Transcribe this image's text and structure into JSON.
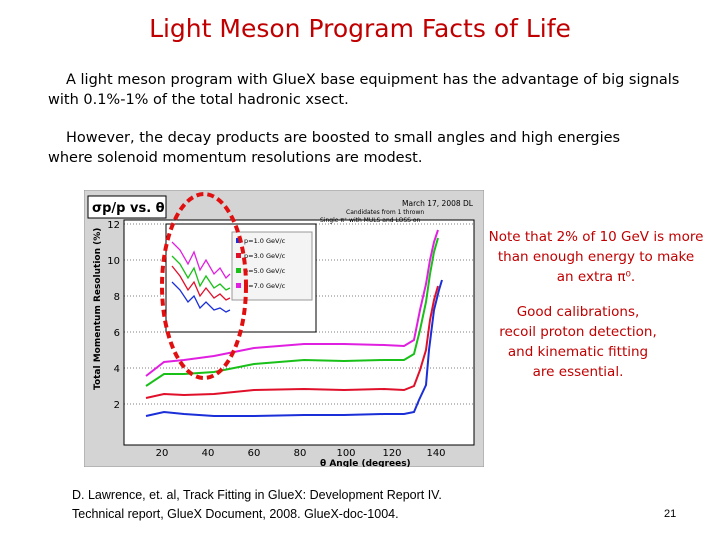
{
  "slide": {
    "title": "Light Meson Program Facts of Life",
    "para1_line1": "A light meson program with GlueX base equipment has the advantage of big signals",
    "para1_line2": "with 0.1%-1% of the total hadronic xsect.",
    "para2_line1": "However,  the decay products are boosted to small angles and high energies",
    "para2_line2": "where solenoid momentum resolutions are modest.",
    "note1": "Note that 2% of 10 GeV is more than enough energy to make an extra π⁰.",
    "note2": "Good calibrations, recoil proton detection, and kinematic fitting are essential.",
    "reference_line1": "D. Lawrence, et. al, Track Fitting in GlueX: Development Report IV.",
    "reference_line2": "Technical report, GlueX Document, 2008. GlueX-doc-1004.",
    "page_number": "21"
  },
  "figure": {
    "header_label": "σp/p vs. θ",
    "date_text": "March 17, 2008 DL",
    "subtitle_line1": "Candidates from 1 thrown",
    "subtitle_line2": "Single π⁺ with MULS and LOSS on",
    "ylabel": "Total Momentum Resolution (%)",
    "xlabel": "θ Angle (degrees)",
    "y_ticks": [
      "2",
      "4",
      "6",
      "8",
      "10",
      "12"
    ],
    "x_ticks": [
      "20",
      "40",
      "60",
      "80",
      "100",
      "120",
      "140"
    ],
    "legend": [
      "p=1.0 GeV/c",
      "p=3.0 GeV/c",
      "p=5.0 GeV/c",
      "p=7.0 GeV/c"
    ],
    "colors": {
      "p1": "#1a2fd8",
      "p3": "#e0102a",
      "p5": "#18c018",
      "p7": "#e020e0",
      "circle": "#e01010"
    }
  }
}
